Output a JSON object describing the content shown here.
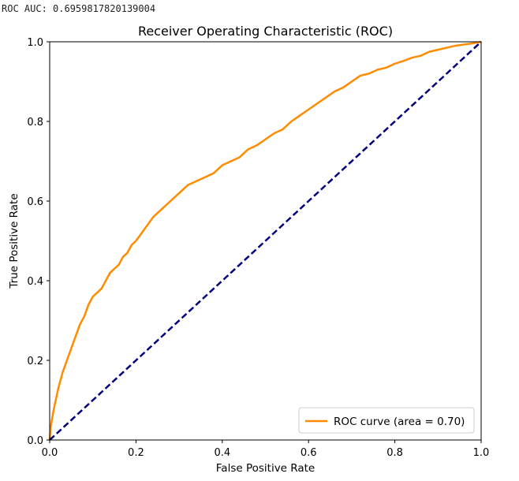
{
  "output_text": "ROC AUC: 0.6959817820139004",
  "chart_data": {
    "type": "line",
    "title": "Receiver Operating Characteristic (ROC)",
    "xlabel": "False Positive Rate",
    "ylabel": "True Positive Rate",
    "xlim": [
      0.0,
      1.0
    ],
    "ylim": [
      0.0,
      1.0
    ],
    "xticks": [
      "0.0",
      "0.2",
      "0.4",
      "0.6",
      "0.8",
      "1.0"
    ],
    "yticks": [
      "0.0",
      "0.2",
      "0.4",
      "0.6",
      "0.8",
      "1.0"
    ],
    "grid": false,
    "legend_position": "lower-right",
    "series": [
      {
        "name": "ROC curve (area = 0.70)",
        "color": "#ff8c00",
        "style": "solid",
        "x": [
          0.0,
          0.002,
          0.005,
          0.01,
          0.02,
          0.03,
          0.04,
          0.05,
          0.06,
          0.07,
          0.08,
          0.09,
          0.1,
          0.11,
          0.12,
          0.13,
          0.14,
          0.15,
          0.16,
          0.17,
          0.18,
          0.19,
          0.2,
          0.22,
          0.24,
          0.26,
          0.28,
          0.3,
          0.32,
          0.34,
          0.36,
          0.38,
          0.4,
          0.42,
          0.44,
          0.46,
          0.48,
          0.5,
          0.52,
          0.54,
          0.56,
          0.58,
          0.6,
          0.62,
          0.64,
          0.66,
          0.68,
          0.7,
          0.72,
          0.74,
          0.76,
          0.78,
          0.8,
          0.82,
          0.84,
          0.86,
          0.88,
          0.9,
          0.92,
          0.94,
          0.96,
          0.98,
          1.0
        ],
        "y": [
          0.0,
          0.03,
          0.05,
          0.08,
          0.13,
          0.17,
          0.2,
          0.23,
          0.26,
          0.29,
          0.31,
          0.34,
          0.36,
          0.37,
          0.38,
          0.4,
          0.42,
          0.43,
          0.44,
          0.46,
          0.47,
          0.49,
          0.5,
          0.53,
          0.56,
          0.58,
          0.6,
          0.62,
          0.64,
          0.65,
          0.66,
          0.67,
          0.69,
          0.7,
          0.71,
          0.73,
          0.74,
          0.755,
          0.77,
          0.78,
          0.8,
          0.815,
          0.83,
          0.845,
          0.86,
          0.875,
          0.885,
          0.9,
          0.915,
          0.92,
          0.93,
          0.935,
          0.945,
          0.952,
          0.96,
          0.965,
          0.975,
          0.98,
          0.985,
          0.99,
          0.993,
          0.996,
          1.0
        ]
      },
      {
        "name": "",
        "color": "#000080",
        "style": "dashed",
        "x": [
          0.0,
          1.0
        ],
        "y": [
          0.0,
          1.0
        ]
      }
    ]
  }
}
